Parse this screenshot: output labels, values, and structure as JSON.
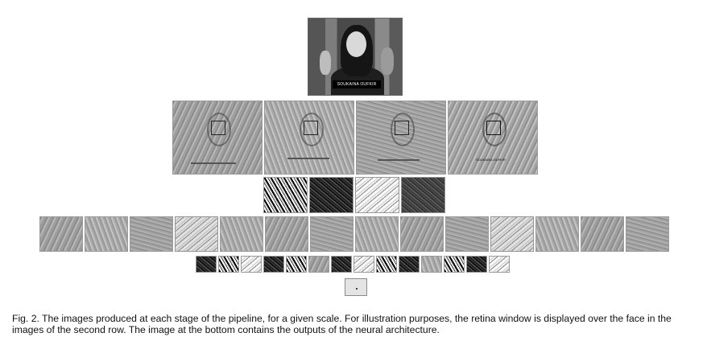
{
  "figure": {
    "photo_name_tag": "SOUKAINA OUFKIR",
    "second_row_last_label": "SOUKAINA OUFKIR",
    "caption": "Fig. 2. The images produced at each stage of the pipeline, for a given scale. For illustration purposes, the retina window is displayed over the face in the images of the second row. The image at the bottom contains the outputs of the neural architecture."
  },
  "rows": {
    "row2_count": 4,
    "row3_count": 4,
    "row4_count": 14,
    "row5_count": 14,
    "row6_count": 1
  }
}
